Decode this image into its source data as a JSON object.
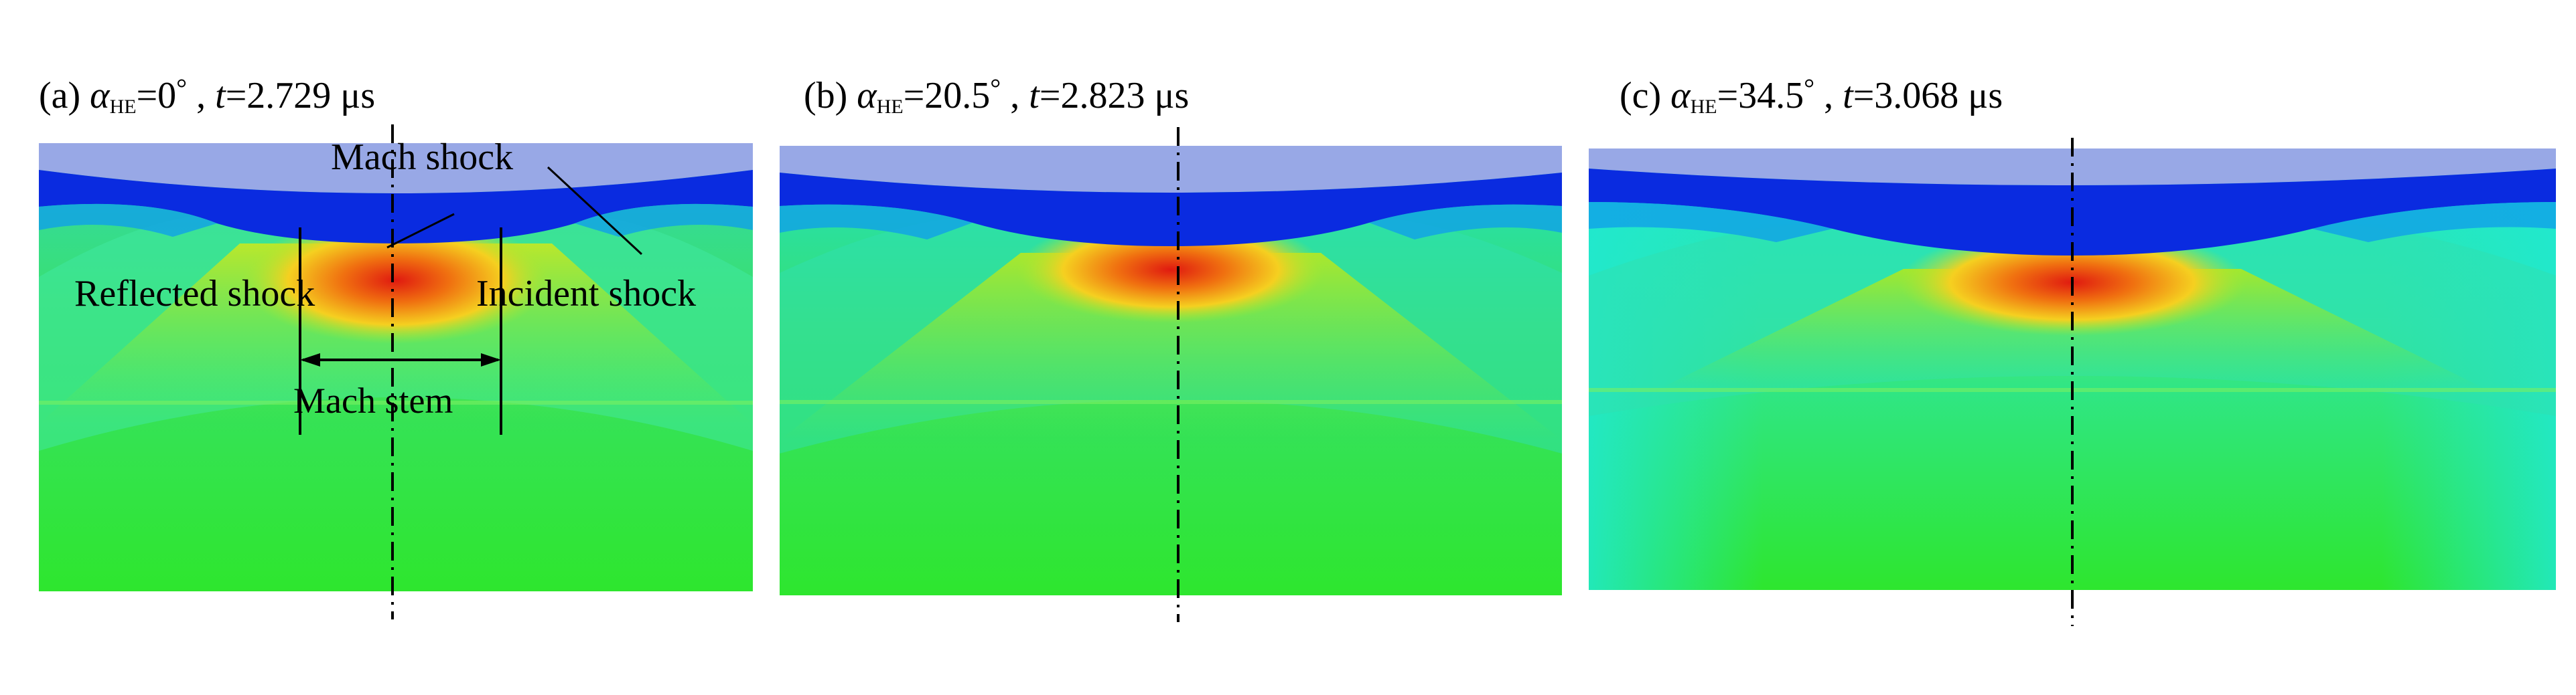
{
  "panels": [
    {
      "id": "a",
      "prefix": "(a) ",
      "alpha_symbol": "α",
      "alpha_subscript": "HE",
      "alpha_value": "=0",
      "degree": "°",
      "sep": " , ",
      "t_symbol": "t",
      "t_value": "=2.729 μs",
      "annotations": {
        "mach_shock": "Mach shock",
        "reflected_shock": "Reflected shock",
        "incident_shock": "Incident shock",
        "mach_stem": "Mach stem"
      }
    },
    {
      "id": "b",
      "prefix": "(b) ",
      "alpha_symbol": "α",
      "alpha_subscript": "HE",
      "alpha_value": "=20.5",
      "degree": "°",
      "sep": " , ",
      "t_symbol": "t",
      "t_value": "=2.823 μs"
    },
    {
      "id": "c",
      "prefix": "(c) ",
      "alpha_symbol": "α",
      "alpha_subscript": "HE",
      "alpha_value": "=34.5",
      "degree": "°",
      "sep": " , ",
      "t_symbol": "t",
      "t_value": "=3.068 μs"
    }
  ],
  "colors": {
    "background_field": "#2ee62e",
    "low_pressure": "#0a2be0",
    "top_layer": "#98a8e6",
    "high_pressure": "#e01a10",
    "mid_pressure": "#f5d020",
    "cyan": "#20e8d0"
  }
}
